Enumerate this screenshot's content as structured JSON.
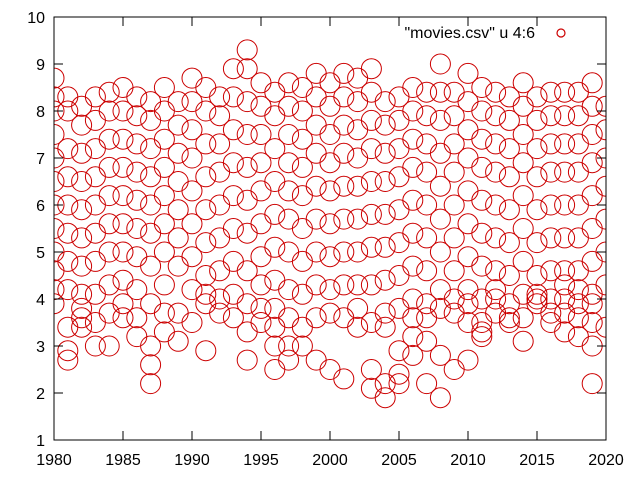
{
  "chart_data": {
    "type": "scatter",
    "title": "",
    "xlabel": "",
    "ylabel": "",
    "xlim": [
      1980,
      2020
    ],
    "ylim": [
      1,
      10
    ],
    "x_ticks": [
      1980,
      1985,
      1990,
      1995,
      2000,
      2005,
      2010,
      2015,
      2020
    ],
    "y_ticks": [
      1,
      2,
      3,
      4,
      5,
      6,
      7,
      8,
      9,
      10
    ],
    "grid": false,
    "legend_position": "top-right",
    "marker": "open-circle",
    "color": "#cc0000",
    "series": [
      {
        "name": "\"movies.csv\" u 4:6",
        "x": [
          1980,
          1980,
          1980,
          1980,
          1980,
          1980,
          1980,
          1980,
          1980,
          1980,
          1980,
          1980,
          1981,
          1981,
          1981,
          1981,
          1981,
          1981,
          1981,
          1981,
          1981,
          1981,
          1981,
          1982,
          1982,
          1982,
          1982,
          1982,
          1982,
          1982,
          1982,
          1982,
          1982,
          1982,
          1983,
          1983,
          1983,
          1983,
          1983,
          1983,
          1983,
          1983,
          1983,
          1983,
          1984,
          1984,
          1984,
          1984,
          1984,
          1984,
          1984,
          1984,
          1984,
          1984,
          1985,
          1985,
          1985,
          1985,
          1985,
          1985,
          1985,
          1985,
          1985,
          1985,
          1986,
          1986,
          1986,
          1986,
          1986,
          1986,
          1986,
          1986,
          1986,
          1986,
          1987,
          1987,
          1987,
          1987,
          1987,
          1987,
          1987,
          1987,
          1987,
          1987,
          1987,
          1988,
          1988,
          1988,
          1988,
          1988,
          1988,
          1988,
          1988,
          1988,
          1988,
          1989,
          1989,
          1989,
          1989,
          1989,
          1989,
          1989,
          1989,
          1989,
          1990,
          1990,
          1990,
          1990,
          1990,
          1990,
          1990,
          1990,
          1990,
          1991,
          1991,
          1991,
          1991,
          1991,
          1991,
          1991,
          1991,
          1991,
          1991,
          1992,
          1992,
          1992,
          1992,
          1992,
          1992,
          1992,
          1992,
          1992,
          1993,
          1993,
          1993,
          1993,
          1993,
          1993,
          1993,
          1993,
          1993,
          1994,
          1994,
          1994,
          1994,
          1994,
          1994,
          1994,
          1994,
          1994,
          1994,
          1994,
          1995,
          1995,
          1995,
          1995,
          1995,
          1995,
          1995,
          1995,
          1995,
          1995,
          1996,
          1996,
          1996,
          1996,
          1996,
          1996,
          1996,
          1996,
          1996,
          1996,
          1996,
          1997,
          1997,
          1997,
          1997,
          1997,
          1997,
          1997,
          1997,
          1997,
          1997,
          1997,
          1998,
          1998,
          1998,
          1998,
          1998,
          1998,
          1998,
          1998,
          1998,
          1998,
          1999,
          1999,
          1999,
          1999,
          1999,
          1999,
          1999,
          1999,
          1999,
          1999,
          2000,
          2000,
          2000,
          2000,
          2000,
          2000,
          2000,
          2000,
          2000,
          2000,
          2001,
          2001,
          2001,
          2001,
          2001,
          2001,
          2001,
          2001,
          2001,
          2001,
          2002,
          2002,
          2002,
          2002,
          2002,
          2002,
          2002,
          2002,
          2002,
          2002,
          2003,
          2003,
          2003,
          2003,
          2003,
          2003,
          2003,
          2003,
          2003,
          2003,
          2003,
          2004,
          2004,
          2004,
          2004,
          2004,
          2004,
          2004,
          2004,
          2004,
          2004,
          2004,
          2005,
          2005,
          2005,
          2005,
          2005,
          2005,
          2005,
          2005,
          2005,
          2005,
          2005,
          2006,
          2006,
          2006,
          2006,
          2006,
          2006,
          2006,
          2006,
          2006,
          2006,
          2006,
          2007,
          2007,
          2007,
          2007,
          2007,
          2007,
          2007,
          2007,
          2007,
          2007,
          2007,
          2008,
          2008,
          2008,
          2008,
          2008,
          2008,
          2008,
          2008,
          2008,
          2008,
          2008,
          2009,
          2009,
          2009,
          2009,
          2009,
          2009,
          2009,
          2009,
          2009,
          2009,
          2010,
          2010,
          2010,
          2010,
          2010,
          2010,
          2010,
          2010,
          2010,
          2010,
          2010,
          2011,
          2011,
          2011,
          2011,
          2011,
          2011,
          2011,
          2011,
          2011,
          2011,
          2011,
          2012,
          2012,
          2012,
          2012,
          2012,
          2012,
          2012,
          2012,
          2012,
          2012,
          2013,
          2013,
          2013,
          2013,
          2013,
          2013,
          2013,
          2013,
          2013,
          2013,
          2014,
          2014,
          2014,
          2014,
          2014,
          2014,
          2014,
          2014,
          2014,
          2014,
          2015,
          2015,
          2015,
          2015,
          2015,
          2015,
          2015,
          2015,
          2015,
          2015,
          2016,
          2016,
          2016,
          2016,
          2016,
          2016,
          2016,
          2016,
          2016,
          2016,
          2017,
          2017,
          2017,
          2017,
          2017,
          2017,
          2017,
          2017,
          2017,
          2017,
          2017,
          2018,
          2018,
          2018,
          2018,
          2018,
          2018,
          2018,
          2018,
          2018,
          2018,
          2018,
          2019,
          2019,
          2019,
          2019,
          2019,
          2019,
          2019,
          2019,
          2019,
          2019,
          2019,
          2019,
          2020,
          2020,
          2020,
          2020,
          2020,
          2020,
          2020,
          2020
        ],
        "y": [
          8.7,
          8.3,
          8.0,
          7.5,
          7.0,
          6.5,
          6.0,
          5.5,
          5.0,
          4.6,
          4.2,
          3.9,
          8.3,
          8.0,
          7.2,
          6.6,
          6.0,
          5.4,
          4.8,
          4.2,
          3.4,
          2.9,
          2.7,
          8.1,
          7.7,
          7.1,
          6.5,
          5.9,
          5.3,
          4.7,
          4.1,
          3.8,
          3.6,
          3.4,
          8.3,
          7.8,
          7.2,
          6.6,
          6.0,
          5.4,
          4.8,
          4.1,
          3.5,
          3.0,
          8.4,
          8.0,
          7.4,
          6.8,
          6.2,
          5.6,
          5.0,
          4.3,
          3.7,
          3.0,
          8.5,
          8.0,
          7.4,
          6.8,
          6.2,
          5.6,
          5.0,
          4.4,
          3.9,
          3.6,
          8.3,
          7.9,
          7.3,
          6.7,
          6.1,
          5.5,
          4.9,
          4.2,
          3.6,
          3.2,
          8.2,
          7.8,
          7.2,
          6.6,
          6.0,
          5.4,
          4.7,
          3.9,
          3.0,
          2.6,
          2.2,
          8.5,
          8.0,
          7.4,
          6.8,
          6.2,
          5.6,
          5.0,
          4.3,
          3.7,
          3.3,
          8.2,
          7.7,
          7.1,
          6.5,
          5.9,
          5.3,
          4.7,
          3.7,
          3.1,
          8.7,
          8.2,
          7.6,
          7.0,
          6.3,
          5.6,
          4.9,
          4.2,
          3.5,
          8.5,
          8.0,
          7.3,
          6.6,
          5.9,
          5.2,
          4.5,
          4.1,
          3.9,
          2.9,
          8.3,
          7.9,
          7.3,
          6.7,
          6.0,
          5.3,
          4.6,
          4.0,
          3.7,
          8.9,
          8.3,
          7.6,
          6.9,
          6.2,
          5.5,
          4.8,
          4.1,
          3.6,
          9.3,
          8.9,
          8.2,
          7.5,
          6.8,
          6.1,
          5.4,
          4.6,
          3.9,
          3.3,
          2.7,
          8.6,
          8.1,
          7.5,
          6.9,
          6.3,
          5.6,
          4.9,
          4.3,
          3.8,
          3.5,
          8.4,
          7.9,
          7.2,
          6.5,
          5.8,
          5.1,
          4.4,
          3.8,
          3.4,
          3.0,
          2.5,
          8.6,
          8.1,
          7.5,
          6.9,
          6.3,
          5.7,
          5.0,
          4.2,
          3.6,
          3.0,
          2.7,
          8.5,
          8.0,
          7.4,
          6.8,
          6.2,
          5.5,
          4.8,
          4.1,
          3.4,
          3.0,
          8.8,
          8.3,
          7.7,
          7.1,
          6.4,
          5.7,
          5.0,
          4.3,
          3.6,
          2.7,
          8.6,
          8.1,
          7.5,
          6.9,
          6.3,
          5.6,
          4.9,
          4.2,
          3.7,
          2.5,
          8.8,
          8.3,
          7.7,
          7.1,
          6.4,
          5.7,
          5.0,
          4.3,
          3.6,
          2.3,
          8.7,
          8.2,
          7.6,
          7.0,
          6.4,
          5.7,
          5.0,
          4.3,
          3.8,
          3.4,
          8.9,
          8.4,
          7.8,
          7.2,
          6.5,
          5.8,
          5.1,
          4.3,
          3.5,
          2.5,
          2.1,
          8.2,
          7.7,
          7.1,
          6.5,
          5.8,
          5.1,
          4.4,
          3.7,
          3.4,
          2.2,
          1.9,
          8.3,
          7.8,
          7.2,
          6.6,
          5.9,
          5.2,
          4.5,
          3.8,
          2.9,
          2.4,
          2.2,
          8.5,
          8.0,
          7.4,
          6.8,
          6.1,
          5.4,
          4.7,
          4.0,
          3.6,
          3.2,
          2.8,
          8.4,
          7.9,
          7.3,
          6.7,
          6.0,
          5.3,
          4.6,
          3.9,
          3.6,
          3.1,
          2.2,
          9.0,
          8.4,
          7.8,
          7.1,
          6.4,
          5.7,
          5.0,
          4.2,
          3.8,
          2.8,
          1.9,
          8.4,
          7.9,
          7.3,
          6.7,
          6.0,
          5.3,
          4.6,
          4.0,
          3.7,
          2.5,
          8.8,
          8.2,
          7.6,
          7.0,
          6.3,
          5.6,
          4.9,
          4.2,
          3.9,
          3.5,
          2.7,
          8.5,
          8.0,
          7.4,
          6.8,
          6.1,
          5.4,
          4.7,
          4.0,
          3.5,
          3.3,
          3.2,
          8.4,
          7.9,
          7.3,
          6.7,
          6.0,
          5.3,
          4.6,
          4.2,
          4.0,
          3.7,
          8.3,
          7.8,
          7.2,
          6.6,
          5.9,
          5.2,
          4.5,
          3.9,
          3.6,
          3.5,
          8.6,
          8.1,
          7.5,
          6.9,
          6.2,
          5.5,
          4.8,
          4.1,
          3.6,
          3.1,
          8.3,
          7.8,
          7.2,
          6.6,
          5.9,
          5.2,
          4.5,
          4.1,
          4.0,
          3.9,
          8.4,
          7.9,
          7.3,
          6.7,
          6.0,
          5.3,
          4.6,
          4.0,
          3.7,
          3.5,
          8.4,
          7.9,
          7.3,
          6.7,
          6.0,
          5.3,
          4.6,
          4.3,
          4.0,
          3.7,
          3.3,
          8.4,
          7.9,
          7.3,
          6.7,
          6.0,
          5.3,
          4.6,
          4.2,
          3.9,
          3.6,
          3.2,
          8.6,
          8.1,
          7.5,
          6.9,
          6.2,
          5.5,
          4.8,
          4.1,
          3.9,
          3.5,
          3.0,
          2.2,
          8.1,
          7.6,
          7.0,
          6.4,
          5.7,
          5.0,
          4.3,
          3.4
        ]
      }
    ]
  }
}
